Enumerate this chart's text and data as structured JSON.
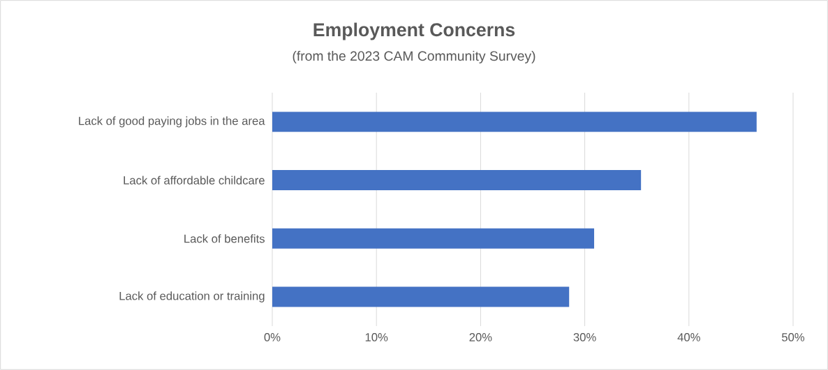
{
  "chart_data": {
    "type": "bar",
    "orientation": "horizontal",
    "title": "Employment Concerns",
    "subtitle": "(from the 2023 CAM Community Survey)",
    "categories": [
      "Lack of good paying jobs in the area",
      "Lack of affordable childcare",
      "Lack of benefits",
      "Lack of  education or training"
    ],
    "values": [
      46.5,
      35.4,
      30.9,
      28.5
    ],
    "color": "#4472c4",
    "xlim": [
      0,
      50
    ],
    "xticks": [
      {
        "value": 0,
        "label": "0%"
      },
      {
        "value": 10,
        "label": "10%"
      },
      {
        "value": 20,
        "label": "20%"
      },
      {
        "value": 30,
        "label": "30%"
      },
      {
        "value": 40,
        "label": "40%"
      },
      {
        "value": 50,
        "label": "50%"
      }
    ],
    "grid": "x"
  }
}
